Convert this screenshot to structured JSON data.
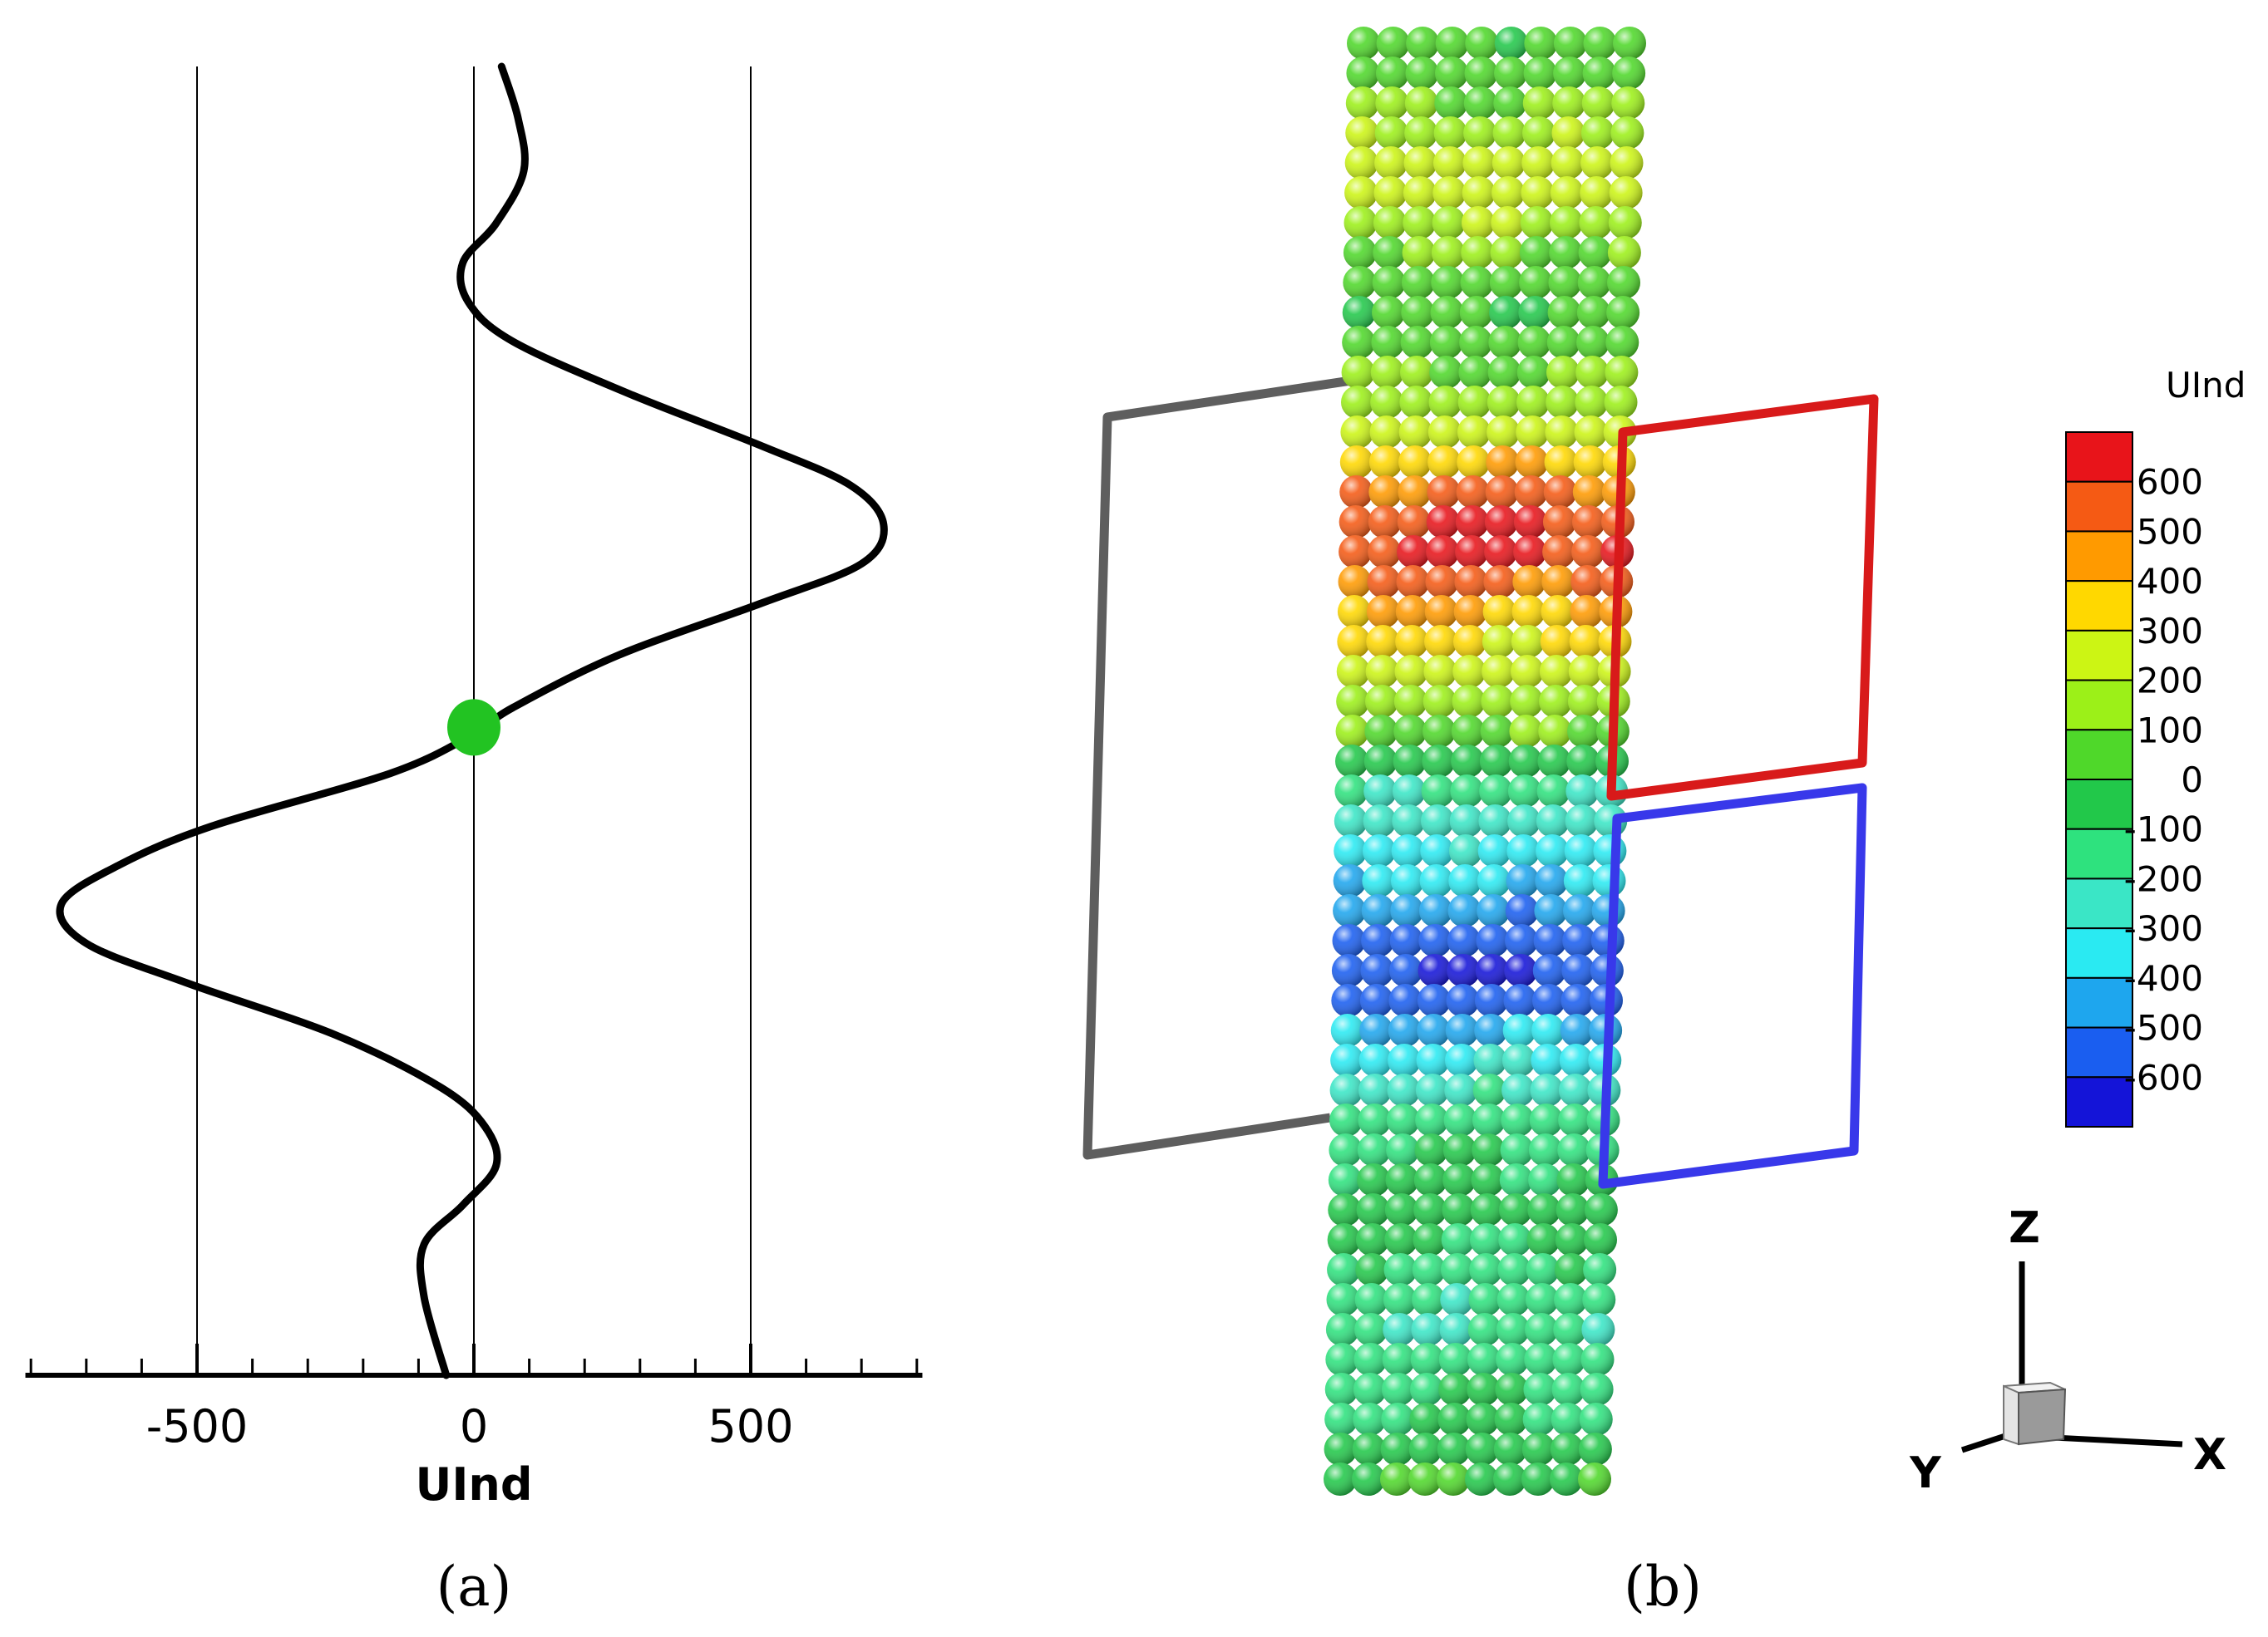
{
  "panel_a": {
    "caption": "(a)",
    "chart_data": {
      "type": "line",
      "xlabel": "UInd",
      "ylabel": "",
      "xlim": [
        -810,
        810
      ],
      "xticks_major": [
        -500,
        0,
        500
      ],
      "xtick_labels": [
        "-500",
        "0",
        "500"
      ],
      "xticks_minor_step": 100,
      "grid": "vertical lines at major ticks",
      "series": [
        {
          "color": "#000000",
          "values_top_to_bottom": [
            {
              "s": 0.0,
              "x": 50
            },
            {
              "s": 0.04,
              "x": 80
            },
            {
              "s": 0.08,
              "x": 90
            },
            {
              "s": 0.12,
              "x": 40
            },
            {
              "s": 0.15,
              "x": -20
            },
            {
              "s": 0.18,
              "x": -10
            },
            {
              "s": 0.21,
              "x": 70
            },
            {
              "s": 0.25,
              "x": 280
            },
            {
              "s": 0.29,
              "x": 520
            },
            {
              "s": 0.32,
              "x": 680
            },
            {
              "s": 0.35,
              "x": 740
            },
            {
              "s": 0.38,
              "x": 700
            },
            {
              "s": 0.41,
              "x": 520
            },
            {
              "s": 0.45,
              "x": 260
            },
            {
              "s": 0.49,
              "x": 70
            },
            {
              "s": 0.51,
              "x": 0
            },
            {
              "s": 0.54,
              "x": -150
            },
            {
              "s": 0.58,
              "x": -470
            },
            {
              "s": 0.61,
              "x": -640
            },
            {
              "s": 0.64,
              "x": -745
            },
            {
              "s": 0.67,
              "x": -700
            },
            {
              "s": 0.7,
              "x": -520
            },
            {
              "s": 0.74,
              "x": -250
            },
            {
              "s": 0.78,
              "x": -60
            },
            {
              "s": 0.81,
              "x": 20
            },
            {
              "s": 0.84,
              "x": 40
            },
            {
              "s": 0.87,
              "x": -20
            },
            {
              "s": 0.9,
              "x": -90
            },
            {
              "s": 0.94,
              "x": -90
            },
            {
              "s": 1.0,
              "x": -50
            }
          ]
        }
      ],
      "marker": {
        "x": 0,
        "s": 0.505,
        "color": "#22c322"
      }
    }
  },
  "panel_b": {
    "caption": "(b)",
    "colorbar": {
      "title": "UInd",
      "levels": [
        "600",
        "500",
        "400",
        "300",
        "200",
        "100",
        "0",
        "-100",
        "-200",
        "-300",
        "-400",
        "-500",
        "-600"
      ],
      "colors": [
        "#e8141a",
        "#f55a14",
        "#ff9a00",
        "#ffd800",
        "#ccf514",
        "#9cf018",
        "#4fd82a",
        "#22c84a",
        "#2ee27e",
        "#3ae6c6",
        "#2aeaf2",
        "#1ea6ee",
        "#1a5ef0",
        "#1414d8"
      ]
    },
    "sphere_values_top_to_bottom": [
      30,
      60,
      110,
      170,
      240,
      260,
      180,
      110,
      60,
      20,
      40,
      80,
      150,
      260,
      380,
      520,
      610,
      620,
      520,
      400,
      320,
      250,
      160,
      70,
      -50,
      -180,
      -260,
      -330,
      -380,
      -470,
      -560,
      -610,
      -560,
      -420,
      -320,
      -230,
      -160,
      -110,
      -70,
      -60,
      -90,
      -130,
      -170,
      -200,
      -160,
      -110,
      -80,
      -40,
      -20
    ],
    "axes": {
      "z": "Z",
      "y": "Y",
      "x": "X"
    },
    "colors": {
      "grey_frame": "#5e5e5e",
      "red_frame": "#d81a1a",
      "blue_frame": "#3838ea"
    }
  }
}
